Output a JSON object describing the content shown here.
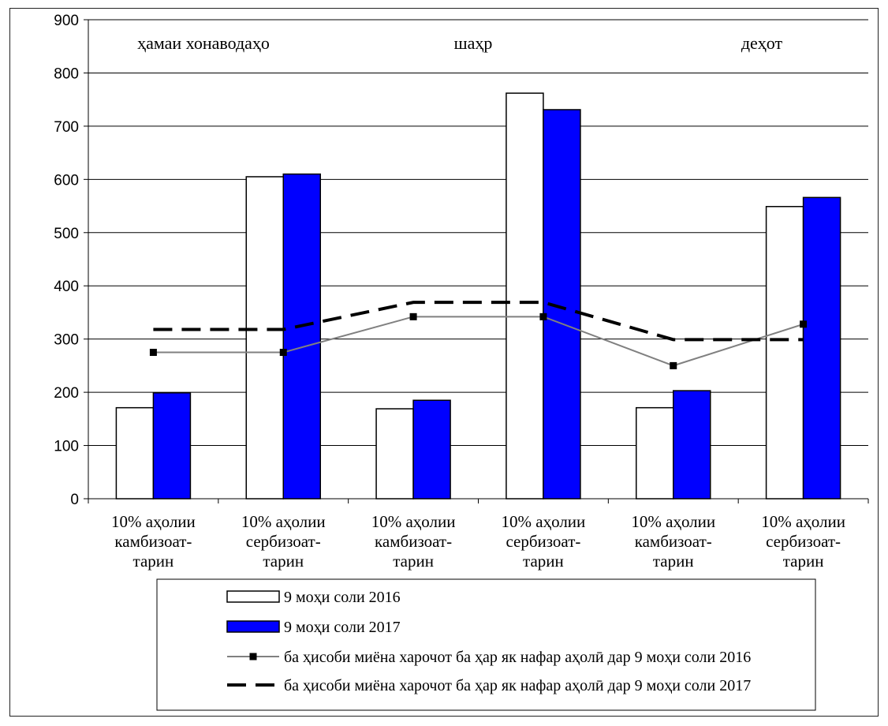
{
  "chart_data": {
    "type": "bar",
    "ylim": [
      0,
      900
    ],
    "yticks": [
      0,
      100,
      200,
      300,
      400,
      500,
      600,
      700,
      800,
      900
    ],
    "grid": true,
    "group_labels": [
      "ҳамаи хонаводаҳо",
      "шаҳр",
      "деҳот"
    ],
    "categories": [
      [
        "10% аҳолии",
        "камбизоат-",
        "тарин"
      ],
      [
        "10% аҳолии",
        "сербизоат-",
        "тарин"
      ],
      [
        "10% аҳолии",
        "камбизоат-",
        "тарин"
      ],
      [
        "10% аҳолии",
        "сербизоат-",
        "тарин"
      ],
      [
        "10% аҳолии",
        "камбизоат-",
        "тарин"
      ],
      [
        "10% аҳолии",
        "сербизоат-",
        "тарин"
      ]
    ],
    "series": [
      {
        "name": "9 моҳи соли 2016",
        "kind": "bar",
        "color": "#ffffff",
        "values": [
          171,
          605,
          169,
          762,
          171,
          549
        ]
      },
      {
        "name": "9 моҳи соли 2017",
        "kind": "bar",
        "color": "#0000ff",
        "values": [
          199,
          610,
          185,
          731,
          203,
          566
        ]
      },
      {
        "name": "ба ҳисоби миёна харочот ба ҳар як нафар аҳолӣ дар 9 моҳи соли 2016",
        "kind": "line",
        "style": "solid-grey-square-markers",
        "color": "#808080",
        "values": [
          275,
          275,
          342,
          342,
          250,
          328
        ]
      },
      {
        "name": "ба ҳисоби миёна харочот ба ҳар як нафар аҳолӣ дар 9 моҳи соли 2017",
        "kind": "line",
        "style": "dashed-black",
        "color": "#000000",
        "values": [
          318,
          318,
          369,
          369,
          299,
          299
        ]
      }
    ],
    "legend_position": "bottom"
  }
}
